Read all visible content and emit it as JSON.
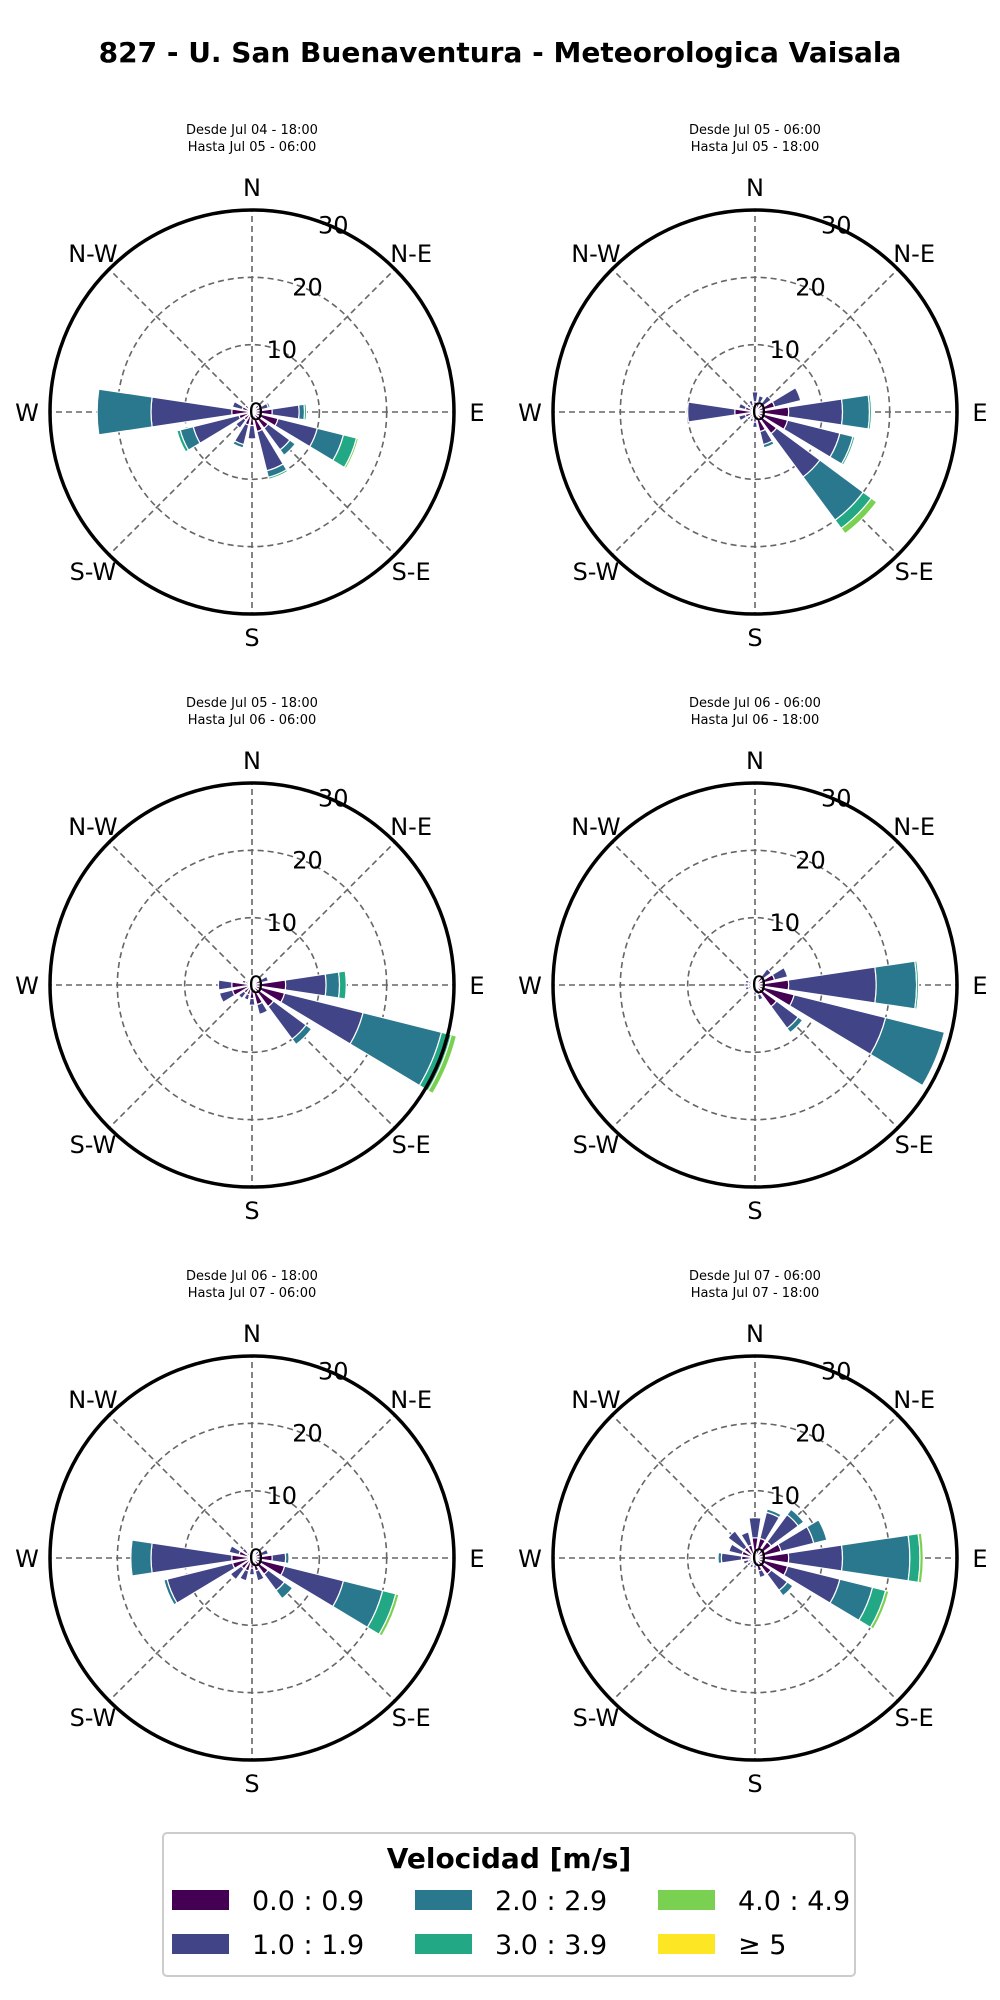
{
  "figure": {
    "title": "827 - U. San Buenaventura - Meteorologica Vaisala"
  },
  "directions": [
    "N",
    "N-E",
    "E",
    "S-E",
    "S",
    "S-W",
    "W",
    "N-W"
  ],
  "legend": {
    "title": "Velocidad [m/s]",
    "bins": [
      {
        "label": "0.0 : 0.9",
        "color": "#440154"
      },
      {
        "label": "1.0 : 1.9",
        "color": "#414487"
      },
      {
        "label": "2.0 : 2.9",
        "color": "#2a788e"
      },
      {
        "label": "3.0 : 3.9",
        "color": "#22a884"
      },
      {
        "label": "4.0 : 4.9",
        "color": "#7ad151"
      },
      {
        "label": "≥ 5",
        "color": "#fde725"
      }
    ]
  },
  "chart_data": [
    {
      "type": "windrose",
      "subtitle_line1": "Desde Jul 04 - 18:00",
      "subtitle_line2": "Hasta Jul 05 - 06:00",
      "rticks": [
        0,
        10,
        20,
        30
      ],
      "rmax": 30,
      "sector_angles_deg": [
        0,
        22.5,
        45,
        67.5,
        90,
        112.5,
        135,
        157.5,
        180,
        202.5,
        225,
        247.5,
        270,
        292.5,
        315,
        337.5
      ],
      "stacks": [
        [
          0.5,
          0.3,
          0,
          0,
          0,
          0
        ],
        [
          0.5,
          0.3,
          0,
          0,
          0,
          0
        ],
        [
          0.8,
          0.5,
          0,
          0,
          0,
          0
        ],
        [
          1.5,
          1.0,
          0.3,
          0,
          0,
          0
        ],
        [
          3.0,
          4.0,
          0.8,
          0.3,
          0,
          0
        ],
        [
          4.0,
          6.0,
          4.0,
          2.0,
          0.3,
          0
        ],
        [
          3.0,
          4.0,
          1.0,
          0,
          0,
          0
        ],
        [
          3.0,
          6.0,
          1.0,
          0.3,
          0,
          0
        ],
        [
          2.0,
          2.0,
          0,
          0,
          0,
          0
        ],
        [
          2.0,
          3.0,
          0.5,
          0,
          0,
          0
        ],
        [
          1.5,
          1.5,
          0,
          0,
          0,
          0
        ],
        [
          2.0,
          7.0,
          2.0,
          0.5,
          0,
          0
        ],
        [
          3.0,
          12.0,
          8.0,
          0,
          0,
          0
        ],
        [
          1.5,
          1.5,
          0,
          0,
          0,
          0
        ],
        [
          0.8,
          0.5,
          0,
          0,
          0,
          0
        ],
        [
          0.5,
          0.3,
          0,
          0,
          0,
          0
        ]
      ]
    },
    {
      "type": "windrose",
      "subtitle_line1": "Desde Jul 05 - 06:00",
      "subtitle_line2": "Hasta Jul 05 - 18:00",
      "rticks": [
        0,
        10,
        20,
        30
      ],
      "rmax": 30,
      "sector_angles_deg": [
        0,
        22.5,
        45,
        67.5,
        90,
        112.5,
        135,
        157.5,
        180,
        202.5,
        225,
        247.5,
        270,
        292.5,
        315,
        337.5
      ],
      "stacks": [
        [
          1.5,
          1.5,
          0,
          0,
          0,
          0
        ],
        [
          1.5,
          1.0,
          0,
          0,
          0,
          0
        ],
        [
          1.5,
          1.5,
          0,
          0,
          0,
          0
        ],
        [
          3.0,
          4.0,
          0,
          0,
          0,
          0
        ],
        [
          5.0,
          8.0,
          4.0,
          0.3,
          0,
          0
        ],
        [
          5.0,
          8.0,
          2.0,
          0.3,
          0,
          0
        ],
        [
          4.0,
          8.0,
          8.0,
          1.5,
          1.0,
          0
        ],
        [
          3.0,
          2.0,
          0.5,
          0,
          0,
          0
        ],
        [
          1.5,
          0.8,
          0,
          0,
          0,
          0
        ],
        [
          1.0,
          0.5,
          0,
          0,
          0,
          0
        ],
        [
          1.0,
          0.5,
          0,
          0,
          0,
          0
        ],
        [
          1.5,
          1.0,
          0,
          0,
          0,
          0
        ],
        [
          3.0,
          7.0,
          0,
          0,
          0,
          0
        ],
        [
          1.5,
          1.0,
          0,
          0,
          0,
          0
        ],
        [
          1.0,
          0.5,
          0,
          0,
          0,
          0
        ],
        [
          1.0,
          0.8,
          0,
          0,
          0,
          0
        ]
      ]
    },
    {
      "type": "windrose",
      "subtitle_line1": "Desde Jul 05 - 18:00",
      "subtitle_line2": "Hasta Jul 06 - 06:00",
      "rticks": [
        0,
        10,
        20,
        30
      ],
      "rmax": 30,
      "sector_angles_deg": [
        0,
        22.5,
        45,
        67.5,
        90,
        112.5,
        135,
        157.5,
        180,
        202.5,
        225,
        247.5,
        270,
        292.5,
        315,
        337.5
      ],
      "stacks": [
        [
          0.5,
          0.3,
          0,
          0,
          0,
          0
        ],
        [
          0.5,
          0.3,
          0,
          0,
          0,
          0
        ],
        [
          0.5,
          0.3,
          0,
          0,
          0,
          0
        ],
        [
          1.5,
          1.0,
          0,
          0,
          0,
          0
        ],
        [
          5.0,
          6.0,
          2.0,
          1.0,
          0,
          0
        ],
        [
          5.0,
          12.0,
          12.0,
          1.5,
          0.8,
          0
        ],
        [
          4.0,
          6.0,
          1.0,
          0,
          0,
          0
        ],
        [
          3.0,
          1.5,
          0,
          0,
          0,
          0
        ],
        [
          2.0,
          1.0,
          0,
          0,
          0,
          0
        ],
        [
          1.5,
          0.8,
          0,
          0,
          0,
          0
        ],
        [
          1.5,
          1.0,
          0,
          0,
          0,
          0
        ],
        [
          3.0,
          2.0,
          0,
          0,
          0,
          0
        ],
        [
          3.0,
          2.0,
          0,
          0,
          0,
          0
        ],
        [
          1.0,
          0.5,
          0,
          0,
          0,
          0
        ],
        [
          0.5,
          0.3,
          0,
          0,
          0,
          0
        ],
        [
          0.5,
          0.3,
          0,
          0,
          0,
          0
        ]
      ]
    },
    {
      "type": "windrose",
      "subtitle_line1": "Desde Jul 06 - 06:00",
      "subtitle_line2": "Hasta Jul 06 - 18:00",
      "rticks": [
        0,
        10,
        20,
        30
      ],
      "rmax": 30,
      "sector_angles_deg": [
        0,
        22.5,
        45,
        67.5,
        90,
        112.5,
        135,
        157.5,
        180,
        202.5,
        225,
        247.5,
        270,
        292.5,
        315,
        337.5
      ],
      "stacks": [
        [
          0.5,
          0.3,
          0,
          0,
          0,
          0
        ],
        [
          0.5,
          0.3,
          0,
          0,
          0,
          0
        ],
        [
          1.5,
          1.5,
          0,
          0,
          0,
          0
        ],
        [
          3.0,
          2.0,
          0,
          0,
          0,
          0
        ],
        [
          5.0,
          13.0,
          6.0,
          0.3,
          0,
          0
        ],
        [
          6.0,
          14.0,
          9.0,
          0,
          0,
          0
        ],
        [
          4.0,
          4.0,
          0.8,
          0,
          0,
          0
        ],
        [
          1.5,
          0.8,
          0,
          0,
          0,
          0
        ],
        [
          1.0,
          0.5,
          0,
          0,
          0,
          0
        ],
        [
          0.5,
          0.3,
          0,
          0,
          0,
          0
        ],
        [
          0.5,
          0.3,
          0,
          0,
          0,
          0
        ],
        [
          1.0,
          0.5,
          0,
          0,
          0,
          0
        ],
        [
          1.0,
          0.5,
          0,
          0,
          0,
          0
        ],
        [
          1.0,
          0.5,
          0,
          0,
          0,
          0
        ],
        [
          0.5,
          0.3,
          0,
          0,
          0,
          0
        ],
        [
          0.5,
          0.3,
          0,
          0,
          0,
          0
        ]
      ]
    },
    {
      "type": "windrose",
      "subtitle_line1": "Desde Jul 06 - 18:00",
      "subtitle_line2": "Hasta Jul 07 - 06:00",
      "rticks": [
        0,
        10,
        20,
        30
      ],
      "rmax": 30,
      "sector_angles_deg": [
        0,
        22.5,
        45,
        67.5,
        90,
        112.5,
        135,
        157.5,
        180,
        202.5,
        225,
        247.5,
        270,
        292.5,
        315,
        337.5
      ],
      "stacks": [
        [
          0.5,
          0.3,
          0,
          0,
          0,
          0
        ],
        [
          0.5,
          0.3,
          0,
          0,
          0,
          0
        ],
        [
          0.8,
          0.5,
          0,
          0,
          0,
          0
        ],
        [
          1.5,
          1.0,
          0,
          0,
          0,
          0
        ],
        [
          3.0,
          2.0,
          0.5,
          0,
          0,
          0
        ],
        [
          5.0,
          9.0,
          6.0,
          2.0,
          0.5,
          0
        ],
        [
          3.0,
          3.0,
          1.5,
          0,
          0,
          0
        ],
        [
          2.0,
          1.5,
          0,
          0,
          0,
          0
        ],
        [
          1.5,
          1.0,
          0,
          0,
          0,
          0
        ],
        [
          2.0,
          1.5,
          0,
          0,
          0,
          0
        ],
        [
          2.0,
          2.0,
          0,
          0,
          0,
          0
        ],
        [
          3.0,
          10.0,
          0.5,
          0,
          0,
          0
        ],
        [
          3.0,
          12.0,
          3.0,
          0,
          0,
          0
        ],
        [
          2.0,
          1.5,
          0,
          0,
          0,
          0
        ],
        [
          1.0,
          0.8,
          0,
          0,
          0,
          0
        ],
        [
          0.5,
          0.3,
          0,
          0,
          0,
          0
        ]
      ]
    },
    {
      "type": "windrose",
      "subtitle_line1": "Desde Jul 07 - 06:00",
      "subtitle_line2": "Hasta Jul 07 - 18:00",
      "rticks": [
        0,
        10,
        20,
        30
      ],
      "rmax": 30,
      "sector_angles_deg": [
        0,
        22.5,
        45,
        67.5,
        90,
        112.5,
        135,
        157.5,
        180,
        202.5,
        225,
        247.5,
        270,
        292.5,
        315,
        337.5
      ],
      "stacks": [
        [
          3.0,
          3.0,
          0,
          0,
          0,
          0
        ],
        [
          3.0,
          4.0,
          0.5,
          0,
          0,
          0
        ],
        [
          3.0,
          5.0,
          1.0,
          0,
          0,
          0
        ],
        [
          4.0,
          5.0,
          2.0,
          0,
          0,
          0
        ],
        [
          5.0,
          8.0,
          10.0,
          1.5,
          0.5,
          0
        ],
        [
          5.0,
          8.0,
          5.0,
          2.0,
          0.5,
          0
        ],
        [
          3.0,
          3.0,
          1.0,
          0,
          0,
          0
        ],
        [
          2.0,
          1.0,
          0,
          0,
          0,
          0
        ],
        [
          1.0,
          0.5,
          0,
          0,
          0,
          0
        ],
        [
          1.0,
          0.5,
          0,
          0,
          0,
          0
        ],
        [
          1.0,
          0.5,
          0,
          0,
          0,
          0
        ],
        [
          1.0,
          0.8,
          0,
          0,
          0,
          0
        ],
        [
          2.0,
          3.0,
          0.5,
          0,
          0,
          0
        ],
        [
          2.0,
          2.0,
          0,
          0,
          0,
          0
        ],
        [
          2.0,
          3.0,
          0,
          0,
          0,
          0
        ],
        [
          2.0,
          2.0,
          0,
          0,
          0,
          0
        ]
      ]
    }
  ]
}
